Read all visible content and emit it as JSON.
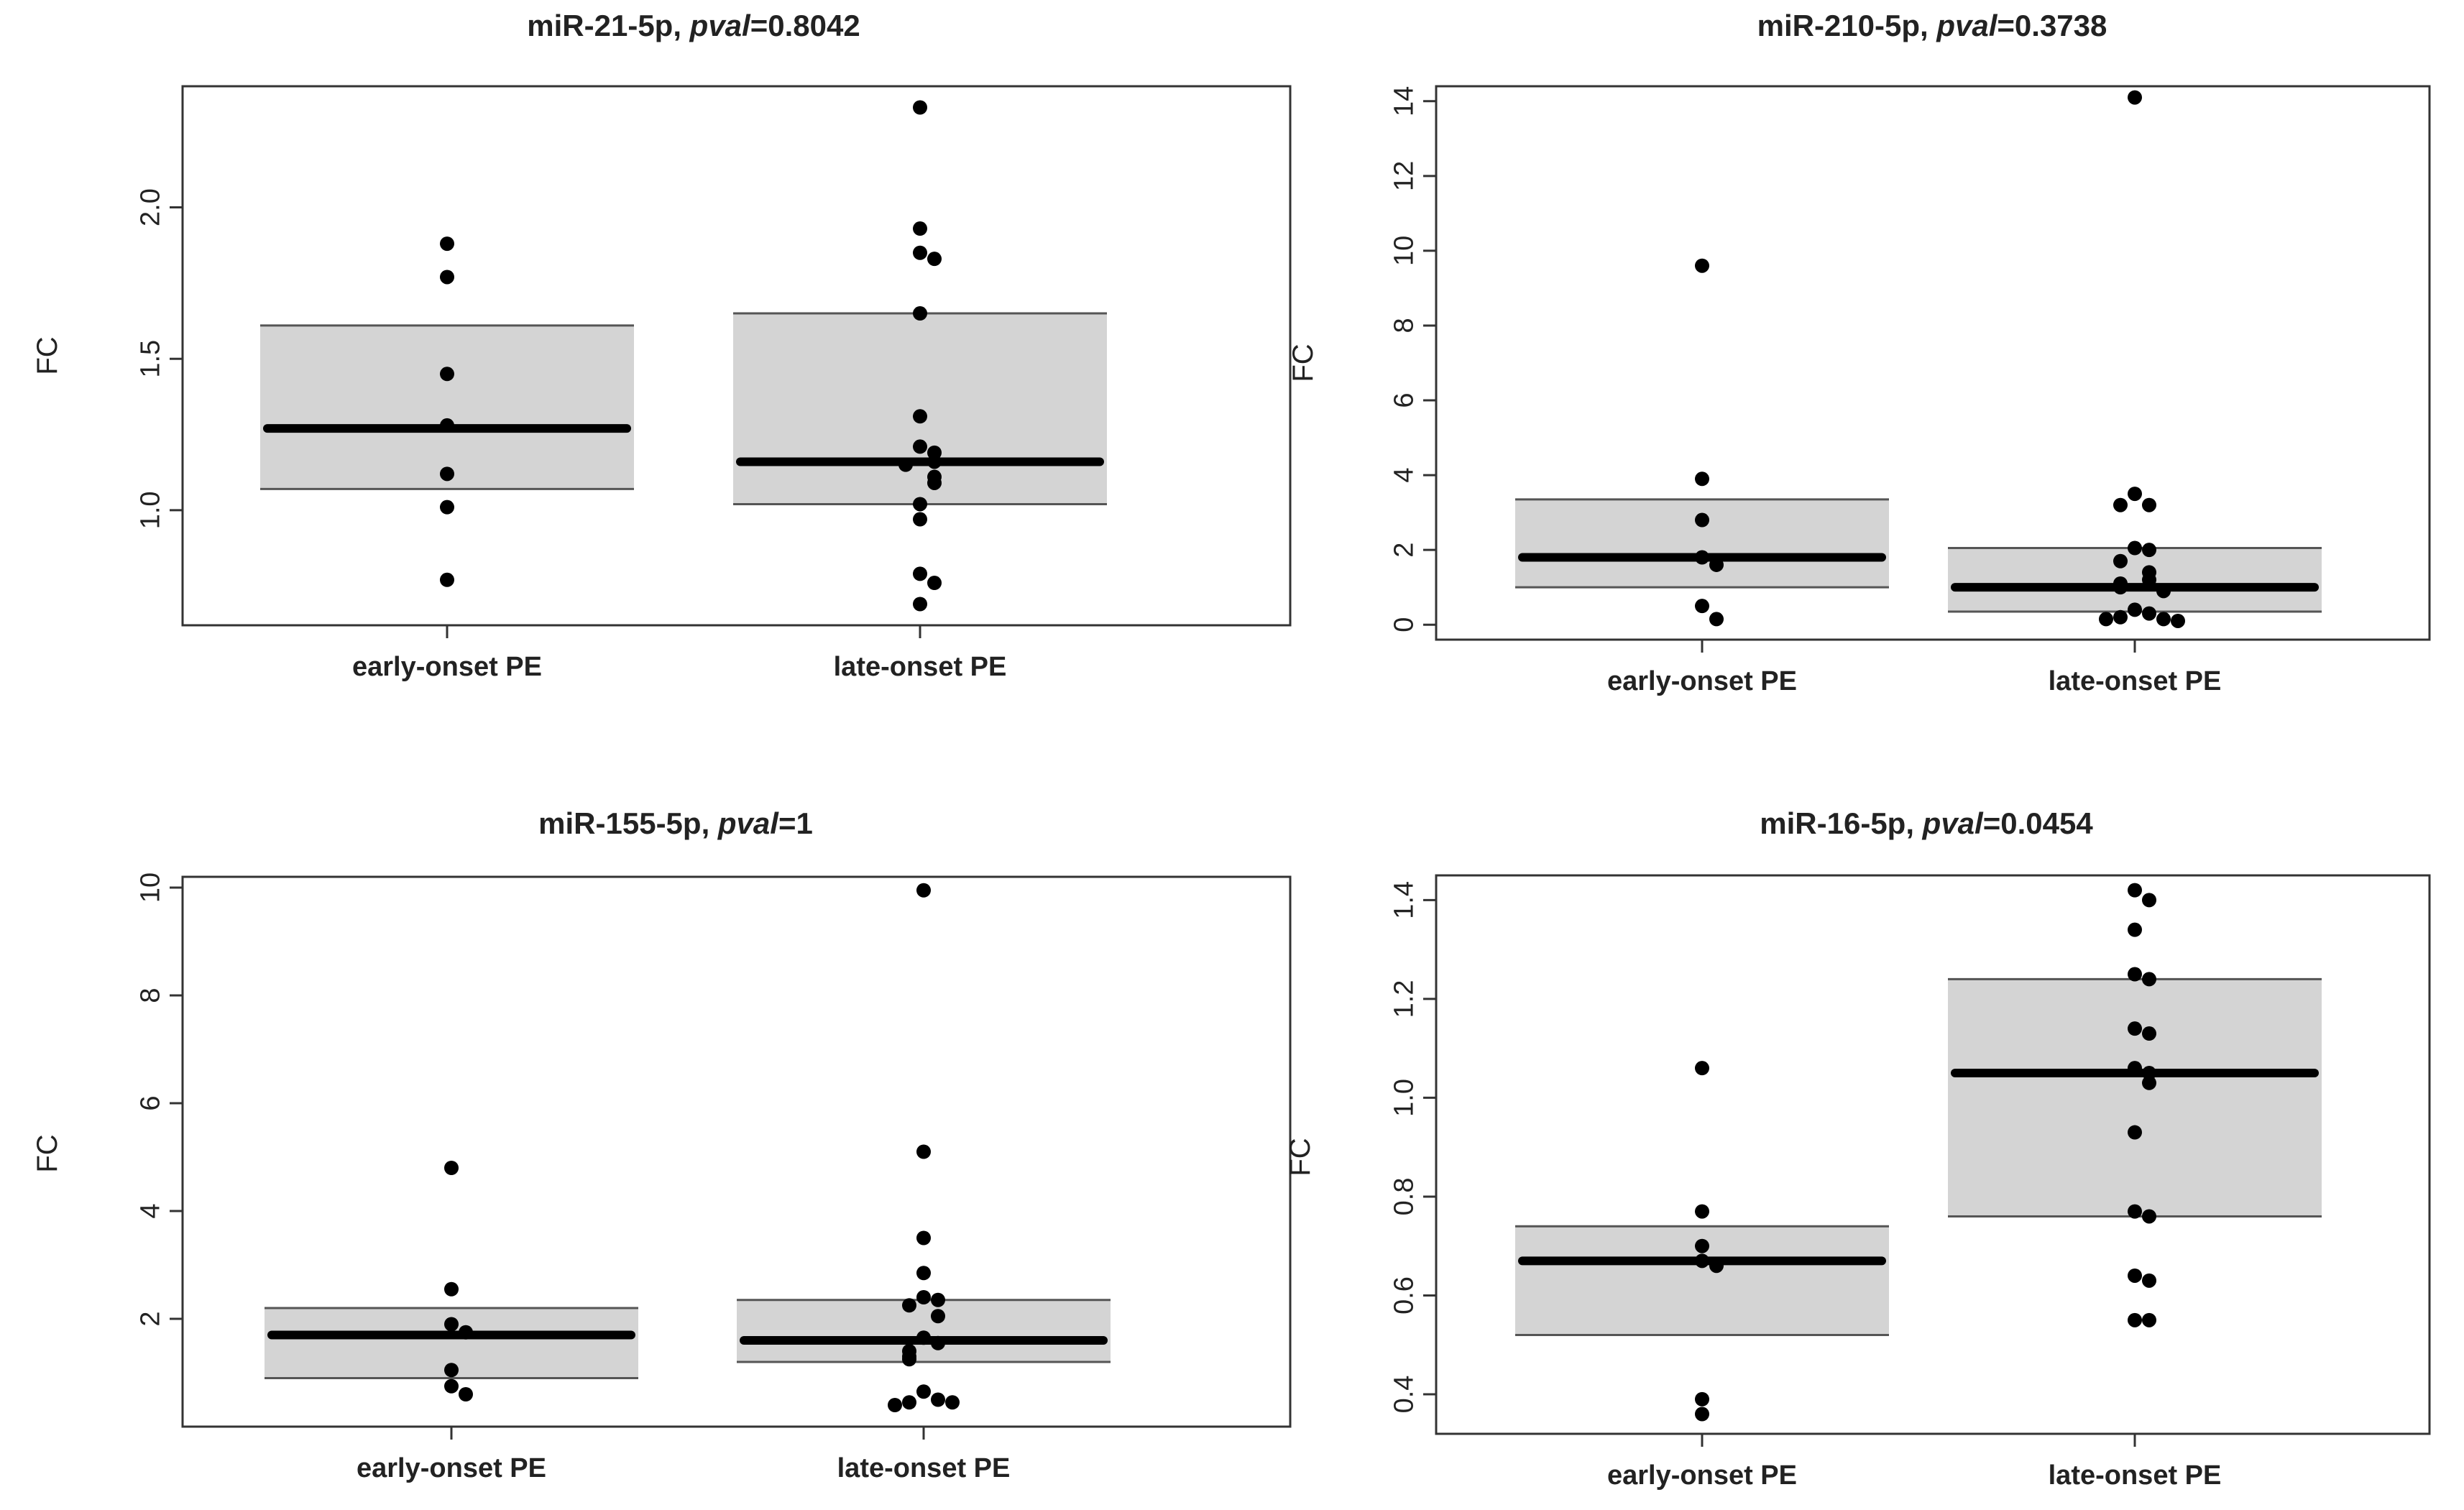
{
  "chart_data": [
    {
      "type": "box",
      "title_prefix": "miR-21-5p, ",
      "title_italic": "pval",
      "title_suffix": "=0.8042",
      "ylabel": "FC",
      "categories": [
        "early-onset PE",
        "late-onset PE"
      ],
      "ylim": [
        0.62,
        2.4
      ],
      "yticks": [
        "1.0",
        "1.5",
        "2.0"
      ],
      "boxes": [
        {
          "name": "early-onset PE",
          "q1": 1.07,
          "median": 1.27,
          "q3": 1.61
        },
        {
          "name": "late-onset PE",
          "q1": 1.02,
          "median": 1.16,
          "q3": 1.65
        }
      ],
      "points": [
        [
          1.88,
          1.77,
          1.45,
          1.28,
          1.12,
          1.01,
          0.77
        ],
        [
          2.33,
          1.93,
          1.85,
          1.83,
          1.65,
          1.31,
          1.21,
          1.19,
          1.16,
          1.15,
          1.11,
          1.09,
          1.02,
          0.97,
          0.79,
          0.76,
          0.69
        ]
      ]
    },
    {
      "type": "box",
      "title_prefix": "miR-210-5p, ",
      "title_italic": "pval",
      "title_suffix": "=0.3738",
      "ylabel": "FC",
      "categories": [
        "early-onset PE",
        "late-onset PE"
      ],
      "ylim": [
        -0.4,
        14.4
      ],
      "yticks": [
        "0",
        "2",
        "4",
        "6",
        "8",
        "10",
        "12",
        "14"
      ],
      "boxes": [
        {
          "name": "early-onset PE",
          "q1": 1.0,
          "median": 1.8,
          "q3": 3.35
        },
        {
          "name": "late-onset PE",
          "q1": 0.35,
          "median": 1.0,
          "q3": 2.05
        }
      ],
      "points": [
        [
          9.6,
          3.9,
          2.8,
          1.8,
          1.6,
          0.5,
          0.15
        ],
        [
          14.1,
          3.5,
          3.2,
          3.2,
          2.05,
          2.0,
          1.7,
          1.4,
          1.2,
          1.1,
          1.0,
          0.9,
          0.4,
          0.3,
          0.2,
          0.15,
          0.15,
          0.1
        ]
      ]
    },
    {
      "type": "box",
      "title_prefix": "miR-155-5p, ",
      "title_italic": "pval",
      "title_suffix": "=1",
      "ylabel": "FC",
      "categories": [
        "early-onset PE",
        "late-onset PE"
      ],
      "ylim": [
        0.0,
        10.2
      ],
      "yticks": [
        "2",
        "4",
        "6",
        "8",
        "10"
      ],
      "boxes": [
        {
          "name": "early-onset PE",
          "q1": 0.9,
          "median": 1.7,
          "q3": 2.2
        },
        {
          "name": "late-onset PE",
          "q1": 1.2,
          "median": 1.6,
          "q3": 2.35
        }
      ],
      "points": [
        [
          4.8,
          2.55,
          1.9,
          1.75,
          1.05,
          0.75,
          0.6
        ],
        [
          9.95,
          5.1,
          3.5,
          2.85,
          2.4,
          2.35,
          2.25,
          2.05,
          1.65,
          1.55,
          1.4,
          1.3,
          1.25,
          0.65,
          0.5,
          0.45,
          0.45,
          0.4
        ]
      ]
    },
    {
      "type": "box",
      "title_prefix": "miR-16-5p, ",
      "title_italic": "pval",
      "title_suffix": "=0.0454",
      "ylabel": "FC",
      "categories": [
        "early-onset PE",
        "late-onset PE"
      ],
      "ylim": [
        0.32,
        1.45
      ],
      "yticks": [
        "0.4",
        "0.6",
        "0.8",
        "1.0",
        "1.2",
        "1.4"
      ],
      "boxes": [
        {
          "name": "early-onset PE",
          "q1": 0.52,
          "median": 0.67,
          "q3": 0.74
        },
        {
          "name": "late-onset PE",
          "q1": 0.76,
          "median": 1.05,
          "q3": 1.24
        }
      ],
      "points": [
        [
          1.06,
          0.77,
          0.7,
          0.67,
          0.66,
          0.39,
          0.36
        ],
        [
          1.42,
          1.4,
          1.34,
          1.25,
          1.24,
          1.14,
          1.13,
          1.06,
          1.05,
          1.03,
          0.93,
          0.77,
          0.76,
          0.64,
          0.63,
          0.55,
          0.55
        ]
      ]
    }
  ]
}
